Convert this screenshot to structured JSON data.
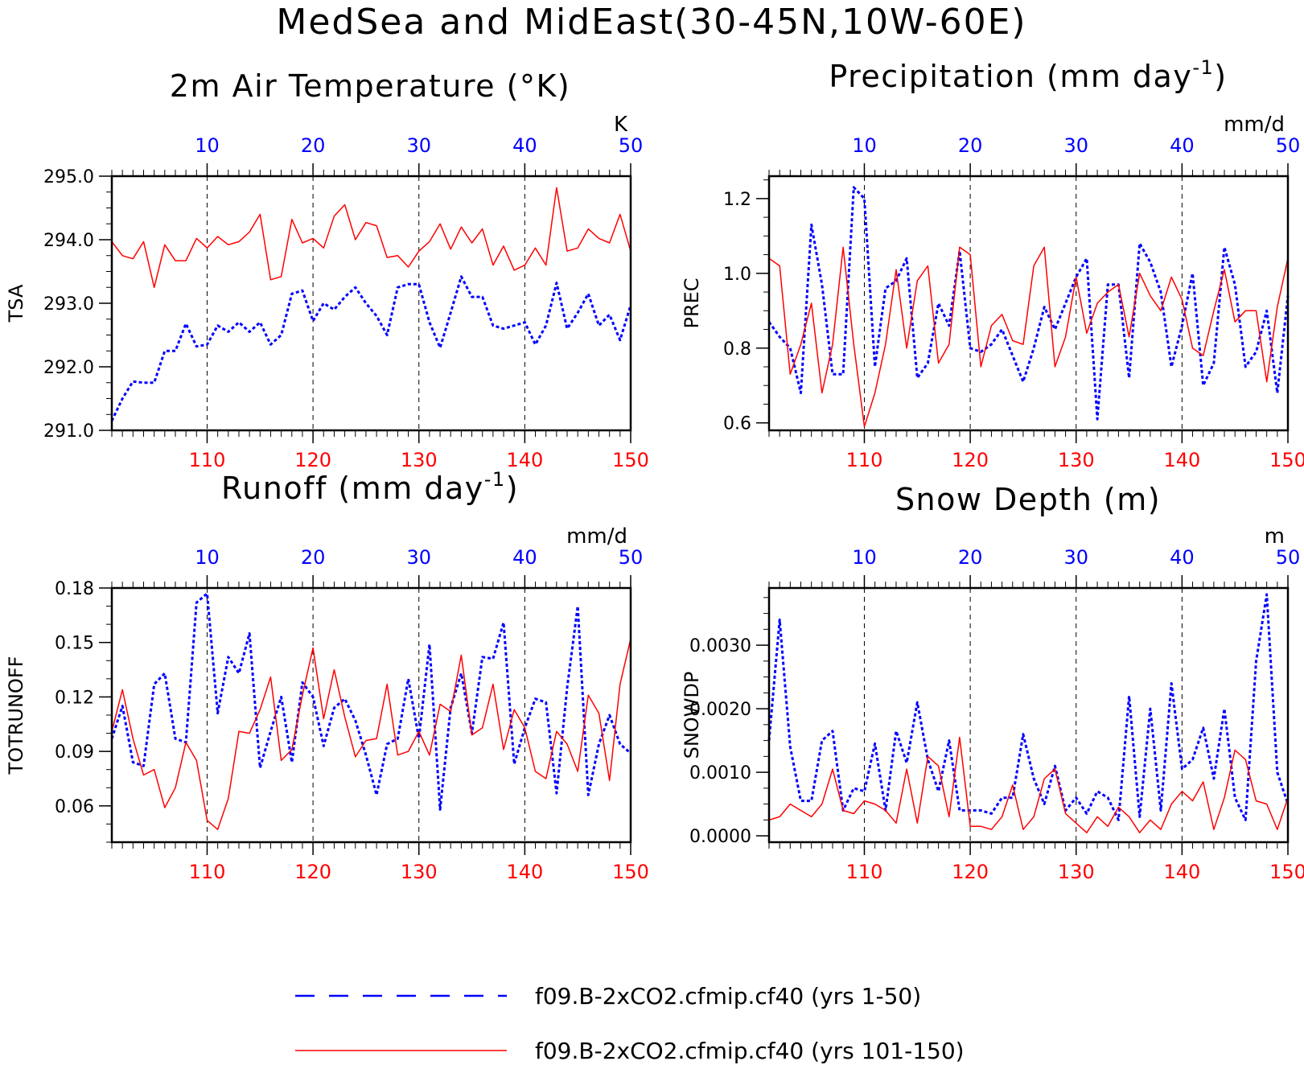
{
  "main_title": "MedSea and MidEast(30-45N,10W-60E)",
  "colors": {
    "blue": "#0000ff",
    "red": "#ff0000",
    "axis": "#000000"
  },
  "legend": [
    {
      "label": "f09.B-2xCO2.cfmip.cf40 (yrs 1-50)",
      "color": "#0000ff",
      "style": "dashed"
    },
    {
      "label": "f09.B-2xCO2.cfmip.cf40 (yrs 101-150)",
      "color": "#ff0000",
      "style": "solid"
    }
  ],
  "chart_data": [
    {
      "type": "line",
      "title": "2m Air Temperature (°K)",
      "title_base": "2m Air Temperature (°K)",
      "title_sup": "",
      "title_end": "",
      "ylabel": "TSA",
      "units": "K",
      "ylim": [
        291.0,
        295.0
      ],
      "yticks": [
        291.0,
        292.0,
        293.0,
        294.0,
        295.0
      ],
      "ytick_labels": [
        "291.0",
        "292.0",
        "293.0",
        "294.0",
        "295.0"
      ],
      "yminor": 0.25,
      "top_xlim": [
        1,
        50
      ],
      "top_ticks": [
        10,
        20,
        30,
        40,
        50
      ],
      "bottom_xlim": [
        101,
        150
      ],
      "bottom_ticks": [
        110,
        120,
        130,
        140,
        150
      ],
      "vlines": [
        10,
        20,
        30,
        40
      ],
      "series": [
        {
          "name": "f09.B-2xCO2.cfmip.cf40 (yrs 1-50)",
          "axis": "top",
          "color": "#0000ff",
          "style": "dashed",
          "values": [
            291.15,
            291.5,
            291.77,
            291.75,
            291.75,
            292.25,
            292.25,
            292.68,
            292.32,
            292.35,
            292.65,
            292.55,
            292.7,
            292.55,
            292.7,
            292.35,
            292.5,
            293.15,
            293.2,
            292.72,
            293.0,
            292.9,
            293.1,
            293.25,
            293.0,
            292.8,
            292.5,
            293.25,
            293.3,
            293.3,
            292.7,
            292.3,
            292.85,
            293.42,
            293.1,
            293.1,
            292.65,
            292.6,
            292.65,
            292.7,
            292.35,
            292.65,
            293.32,
            292.6,
            292.85,
            293.15,
            292.65,
            292.82,
            292.42,
            292.97
          ]
        },
        {
          "name": "f09.B-2xCO2.cfmip.cf40 (yrs 101-150)",
          "axis": "bottom",
          "color": "#ff0000",
          "style": "solid",
          "values": [
            293.97,
            293.75,
            293.7,
            293.97,
            293.25,
            293.92,
            293.67,
            293.67,
            294.02,
            293.87,
            294.05,
            293.92,
            293.97,
            294.12,
            294.4,
            293.37,
            293.42,
            294.32,
            293.95,
            294.02,
            293.87,
            294.37,
            294.55,
            294.0,
            294.27,
            294.22,
            293.72,
            293.75,
            293.57,
            293.82,
            293.97,
            294.25,
            293.85,
            294.2,
            293.95,
            294.17,
            293.6,
            293.9,
            293.52,
            293.6,
            293.87,
            293.6,
            294.82,
            293.82,
            293.87,
            294.17,
            294.02,
            293.95,
            294.4,
            293.82
          ]
        }
      ]
    },
    {
      "type": "line",
      "title": "Precipitation (mm day-1)",
      "title_base": "Precipitation (mm day",
      "title_sup": "-1",
      "title_end": ")",
      "ylabel": "PREC",
      "units": "mm/d",
      "ylim": [
        0.58,
        1.26
      ],
      "yticks": [
        0.6,
        0.8,
        1.0,
        1.2
      ],
      "ytick_labels": [
        "0.6",
        "0.8",
        "1.0",
        "1.2"
      ],
      "yminor": 0.05,
      "top_xlim": [
        1,
        50
      ],
      "top_ticks": [
        10,
        20,
        30,
        40,
        50
      ],
      "bottom_xlim": [
        101,
        150
      ],
      "bottom_ticks": [
        110,
        120,
        130,
        140,
        150
      ],
      "vlines": [
        10,
        20,
        30,
        40
      ],
      "series": [
        {
          "name": "f09.B-2xCO2.cfmip.cf40 (yrs 1-50)",
          "axis": "top",
          "color": "#0000ff",
          "style": "dashed",
          "values": [
            0.87,
            0.83,
            0.8,
            0.68,
            1.13,
            0.97,
            0.73,
            0.73,
            1.23,
            1.2,
            0.75,
            0.96,
            0.98,
            1.04,
            0.72,
            0.76,
            0.92,
            0.86,
            1.06,
            0.8,
            0.79,
            0.81,
            0.85,
            0.78,
            0.71,
            0.8,
            0.91,
            0.85,
            0.92,
            0.99,
            1.04,
            0.61,
            0.97,
            0.97,
            0.72,
            1.08,
            1.03,
            0.95,
            0.75,
            0.86,
            1.0,
            0.7,
            0.76,
            1.07,
            0.97,
            0.75,
            0.79,
            0.9,
            0.68,
            0.94
          ]
        },
        {
          "name": "f09.B-2xCO2.cfmip.cf40 (yrs 101-150)",
          "axis": "bottom",
          "color": "#ff0000",
          "style": "solid",
          "values": [
            1.04,
            1.02,
            0.73,
            0.81,
            0.92,
            0.68,
            0.81,
            1.07,
            0.81,
            0.59,
            0.68,
            0.81,
            1.01,
            0.8,
            0.98,
            1.02,
            0.76,
            0.81,
            1.07,
            1.05,
            0.75,
            0.86,
            0.89,
            0.82,
            0.81,
            1.02,
            1.07,
            0.75,
            0.83,
            0.99,
            0.84,
            0.92,
            0.95,
            0.97,
            0.83,
            1.0,
            0.94,
            0.9,
            0.99,
            0.93,
            0.8,
            0.78,
            0.9,
            1.01,
            0.87,
            0.9,
            0.9,
            0.71,
            0.91,
            1.04
          ]
        }
      ]
    },
    {
      "type": "line",
      "title": "Runoff (mm day-1)",
      "title_base": "Runoff (mm day",
      "title_sup": "-1",
      "title_end": ")",
      "ylabel": "TOTRUNOFF",
      "units": "mm/d",
      "ylim": [
        0.04,
        0.18
      ],
      "yticks": [
        0.06,
        0.09,
        0.12,
        0.15,
        0.18
      ],
      "ytick_labels": [
        "0.06",
        "0.09",
        "0.12",
        "0.15",
        "0.18"
      ],
      "yminor": 0.01,
      "top_xlim": [
        1,
        50
      ],
      "top_ticks": [
        10,
        20,
        30,
        40,
        50
      ],
      "bottom_xlim": [
        101,
        150
      ],
      "bottom_ticks": [
        110,
        120,
        130,
        140,
        150
      ],
      "vlines": [
        10,
        20,
        30,
        40
      ],
      "series": [
        {
          "name": "f09.B-2xCO2.cfmip.cf40 (yrs 1-50)",
          "axis": "top",
          "color": "#0000ff",
          "style": "dashed",
          "values": [
            0.097,
            0.115,
            0.084,
            0.082,
            0.127,
            0.133,
            0.097,
            0.095,
            0.172,
            0.177,
            0.111,
            0.142,
            0.133,
            0.155,
            0.081,
            0.101,
            0.12,
            0.084,
            0.128,
            0.12,
            0.093,
            0.114,
            0.119,
            0.107,
            0.088,
            0.066,
            0.094,
            0.097,
            0.13,
            0.097,
            0.149,
            0.058,
            0.114,
            0.133,
            0.1,
            0.142,
            0.141,
            0.161,
            0.083,
            0.103,
            0.119,
            0.117,
            0.067,
            0.125,
            0.17,
            0.066,
            0.094,
            0.11,
            0.094,
            0.089
          ]
        },
        {
          "name": "f09.B-2xCO2.cfmip.cf40 (yrs 101-150)",
          "axis": "bottom",
          "color": "#ff0000",
          "style": "solid",
          "values": [
            0.101,
            0.124,
            0.097,
            0.077,
            0.08,
            0.059,
            0.07,
            0.095,
            0.085,
            0.052,
            0.047,
            0.064,
            0.101,
            0.1,
            0.113,
            0.131,
            0.085,
            0.091,
            0.121,
            0.147,
            0.108,
            0.135,
            0.109,
            0.087,
            0.096,
            0.097,
            0.127,
            0.088,
            0.09,
            0.101,
            0.088,
            0.116,
            0.112,
            0.143,
            0.099,
            0.103,
            0.127,
            0.091,
            0.113,
            0.103,
            0.079,
            0.075,
            0.101,
            0.094,
            0.079,
            0.121,
            0.111,
            0.074,
            0.127,
            0.152
          ]
        }
      ]
    },
    {
      "type": "line",
      "title": "Snow Depth (m)",
      "title_base": "Snow Depth (m)",
      "title_sup": "",
      "title_end": "",
      "ylabel": "SNOWDP",
      "units": "m",
      "ylim": [
        -0.0001,
        0.0039
      ],
      "yticks": [
        0.0,
        0.001,
        0.002,
        0.003
      ],
      "ytick_labels": [
        "0.0000",
        "0.0010",
        "0.0020",
        "0.0030"
      ],
      "yminor": 0.00025,
      "top_xlim": [
        1,
        50
      ],
      "top_ticks": [
        10,
        20,
        30,
        40,
        50
      ],
      "bottom_xlim": [
        101,
        150
      ],
      "bottom_ticks": [
        110,
        120,
        130,
        140,
        150
      ],
      "vlines": [
        10,
        20,
        30,
        40
      ],
      "series": [
        {
          "name": "f09.B-2xCO2.cfmip.cf40 (yrs 1-50)",
          "axis": "top",
          "color": "#0000ff",
          "style": "dashed",
          "values": [
            0.0015,
            0.0034,
            0.0014,
            0.00055,
            0.00055,
            0.0015,
            0.00165,
            0.0004,
            0.00075,
            0.0007,
            0.00145,
            0.0004,
            0.00165,
            0.00115,
            0.0021,
            0.0012,
            0.0007,
            0.0015,
            0.0004,
            0.0004,
            0.0004,
            0.00035,
            0.0006,
            0.0006,
            0.0016,
            0.0009,
            0.0005,
            0.0011,
            0.0004,
            0.0006,
            0.00035,
            0.0007,
            0.0006,
            0.00025,
            0.0022,
            0.0003,
            0.002,
            0.0004,
            0.0024,
            0.00105,
            0.0012,
            0.0017,
            0.0009,
            0.002,
            0.0006,
            0.00025,
            0.00275,
            0.0038,
            0.001,
            0.0005
          ]
        },
        {
          "name": "f09.B-2xCO2.cfmip.cf40 (yrs 101-150)",
          "axis": "bottom",
          "color": "#ff0000",
          "style": "solid",
          "values": [
            0.00025,
            0.0003,
            0.0005,
            0.0004,
            0.0003,
            0.0005,
            0.00105,
            0.0004,
            0.00035,
            0.00055,
            0.0005,
            0.0004,
            0.0002,
            0.00105,
            0.0002,
            0.00125,
            0.0011,
            0.0003,
            0.00155,
            0.00015,
            0.00015,
            0.0001,
            0.0003,
            0.0008,
            0.0001,
            0.0003,
            0.0009,
            0.00105,
            0.00035,
            0.0002,
            5e-05,
            0.0003,
            0.00015,
            0.00045,
            0.0003,
            5e-05,
            0.00025,
            0.0001,
            0.0005,
            0.0007,
            0.00055,
            0.00085,
            0.0001,
            0.0006,
            0.00135,
            0.0012,
            0.00055,
            0.0005,
            0.0001,
            0.0006
          ]
        }
      ]
    }
  ]
}
